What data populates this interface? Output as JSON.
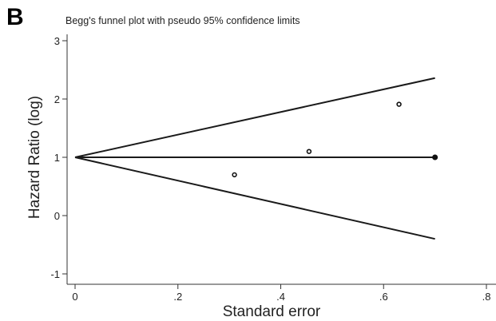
{
  "panel_label": "B",
  "chart_data": {
    "type": "scatter",
    "title": "Begg's funnel plot with pseudo 95% confidence limits",
    "xlabel": "Standard error",
    "ylabel": "Hazard Ratio (log)",
    "xlim": [
      0,
      0.8
    ],
    "ylim": [
      -1,
      3
    ],
    "x_ticks": [
      {
        "value": 0,
        "label": "0"
      },
      {
        "value": 0.2,
        "label": ".2"
      },
      {
        "value": 0.4,
        "label": ".4"
      },
      {
        "value": 0.6,
        "label": ".6"
      },
      {
        "value": 0.8,
        "label": ".8"
      }
    ],
    "y_ticks": [
      {
        "value": -1,
        "label": "-1"
      },
      {
        "value": 0,
        "label": "0"
      },
      {
        "value": 1,
        "label": "1"
      },
      {
        "value": 2,
        "label": "2"
      },
      {
        "value": 3,
        "label": "3"
      }
    ],
    "grid": false,
    "pooled_estimate": 1,
    "max_standard_error": 0.7,
    "lower_limit_at_max_se": -0.4,
    "upper_limit_at_max_se": 2.36,
    "points": [
      {
        "x": 0.31,
        "y": 0.7,
        "style": "open"
      },
      {
        "x": 0.455,
        "y": 1.1,
        "style": "open"
      },
      {
        "x": 0.63,
        "y": 1.91,
        "style": "open"
      },
      {
        "x": 0.7,
        "y": 1,
        "style": "filled"
      }
    ],
    "colors": {
      "lines": "#1a1a1a",
      "axes": "#333333",
      "background": "#ffffff"
    }
  }
}
